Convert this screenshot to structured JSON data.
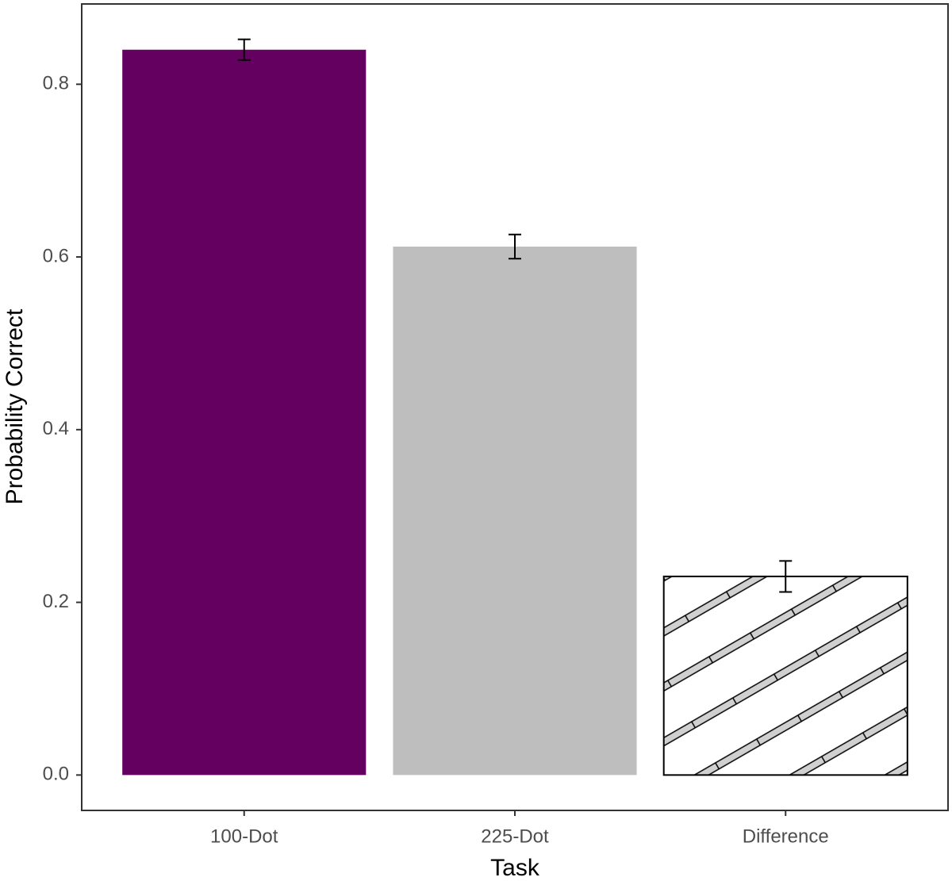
{
  "chart_data": {
    "type": "bar",
    "x_label": "Task",
    "y_label": "Probability Correct",
    "categories": [
      "100-Dot",
      "225-Dot",
      "Difference"
    ],
    "values": [
      0.84,
      0.612,
      0.23
    ],
    "errors": [
      0.012,
      0.014,
      0.018
    ],
    "colors": [
      "#640060",
      "#bebebe",
      "#ffffff"
    ],
    "hatched": [
      false,
      false,
      true
    ],
    "ylim": [
      -0.041,
      0.893
    ],
    "yticks": [
      {
        "value": 0,
        "label": "0.0"
      },
      0.2,
      0.4,
      0.6,
      0.8
    ],
    "grid": false
  }
}
